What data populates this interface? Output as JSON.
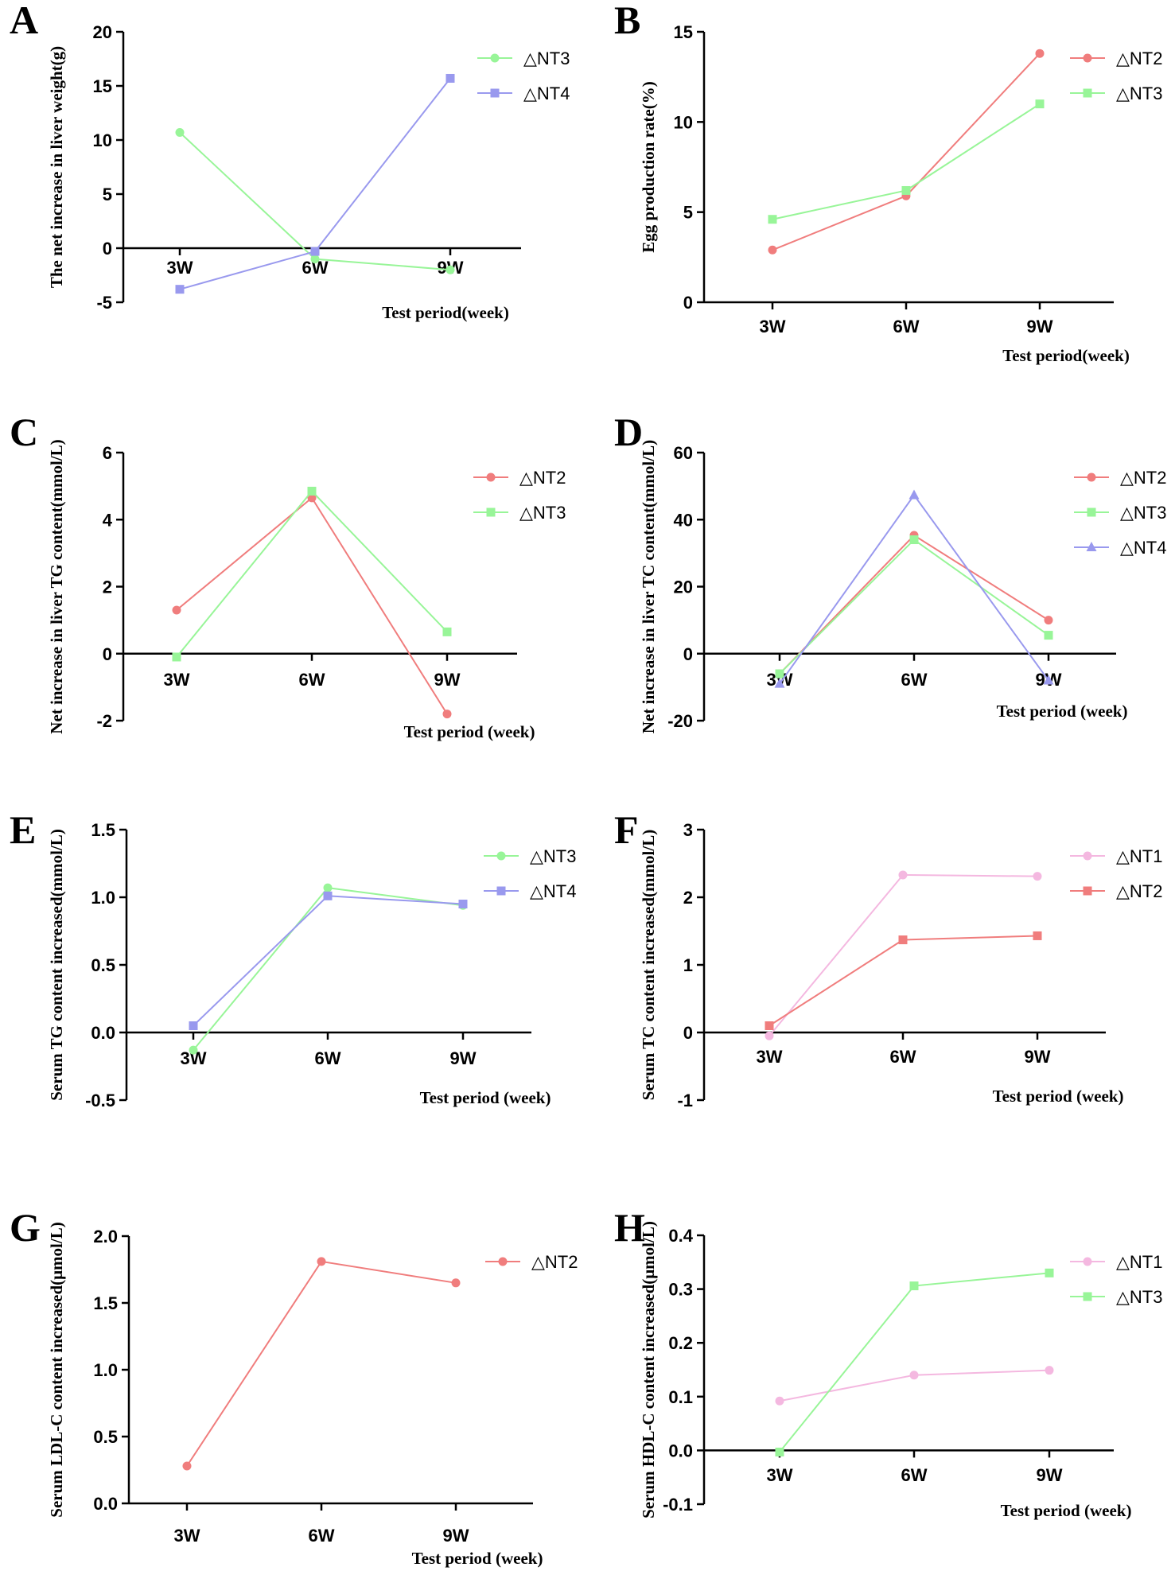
{
  "colors": {
    "NT1": "#f4b8e0",
    "NT2": "#f07d7d",
    "NT3": "#98f598",
    "NT4": "#9999ee"
  },
  "chart_data": [
    {
      "panel": "A",
      "type": "line",
      "categories": [
        "3W",
        "6W",
        "9W"
      ],
      "ylabel": "The net increase in liver weight(g)",
      "xlabel": "Test period(week)",
      "ylim": [
        -5,
        20
      ],
      "yticks": [
        "-5",
        "0",
        "5",
        "10",
        "15",
        "20"
      ],
      "series": [
        {
          "name": "△NT3",
          "key": "NT3",
          "marker": "circle",
          "values": [
            10.7,
            -1.0,
            -2.0
          ]
        },
        {
          "name": "△NT4",
          "key": "NT4",
          "marker": "square",
          "values": [
            -3.8,
            -0.3,
            15.7
          ]
        }
      ]
    },
    {
      "panel": "B",
      "type": "line",
      "categories": [
        "3W",
        "6W",
        "9W"
      ],
      "ylabel": "Egg production rate(%)",
      "xlabel": "Test period(week)",
      "ylim": [
        0,
        15
      ],
      "yticks": [
        "0",
        "5",
        "10",
        "15"
      ],
      "series": [
        {
          "name": "△NT2",
          "key": "NT2",
          "marker": "circle",
          "values": [
            2.9,
            5.9,
            13.8
          ]
        },
        {
          "name": "△NT3",
          "key": "NT3",
          "marker": "square",
          "values": [
            4.6,
            6.2,
            11.0
          ]
        }
      ]
    },
    {
      "panel": "C",
      "type": "line",
      "categories": [
        "3W",
        "6W",
        "9W"
      ],
      "ylabel": "Net increase in liver TG content(mmol/L)",
      "xlabel": "Test period (week)",
      "ylim": [
        -2,
        6
      ],
      "yticks": [
        "-2",
        "0",
        "2",
        "4",
        "6"
      ],
      "series": [
        {
          "name": "△NT2",
          "key": "NT2",
          "marker": "circle",
          "values": [
            1.3,
            4.65,
            -1.8
          ]
        },
        {
          "name": "△NT3",
          "key": "NT3",
          "marker": "square",
          "values": [
            -0.1,
            4.85,
            0.65
          ]
        }
      ]
    },
    {
      "panel": "D",
      "type": "line",
      "categories": [
        "3W",
        "6W",
        "9W"
      ],
      "ylabel": "Net increase in liver TC content(mmol/L)",
      "xlabel": "Test period (week)",
      "ylim": [
        -20,
        60
      ],
      "yticks": [
        "-20",
        "0",
        "20",
        "40",
        "60"
      ],
      "series": [
        {
          "name": "△NT2",
          "key": "NT2",
          "marker": "circle",
          "values": [
            -6.0,
            35.3,
            10.0
          ]
        },
        {
          "name": "△NT3",
          "key": "NT3",
          "marker": "square",
          "values": [
            -6.0,
            34.0,
            5.5
          ]
        },
        {
          "name": "△NT4",
          "key": "NT4",
          "marker": "triangle",
          "values": [
            -9.0,
            47.3,
            -8.0
          ]
        }
      ]
    },
    {
      "panel": "E",
      "type": "line",
      "categories": [
        "3W",
        "6W",
        "9W"
      ],
      "ylabel": "Serum TG content increased(mmol/L)",
      "xlabel": "Test period (week)",
      "ylim": [
        -0.5,
        1.5
      ],
      "yticks": [
        "-0.5",
        "0.0",
        "0.5",
        "1.0",
        "1.5"
      ],
      "series": [
        {
          "name": "△NT3",
          "key": "NT3",
          "marker": "circle",
          "values": [
            -0.13,
            1.07,
            0.94
          ]
        },
        {
          "name": "△NT4",
          "key": "NT4",
          "marker": "square",
          "values": [
            0.05,
            1.01,
            0.95
          ]
        }
      ]
    },
    {
      "panel": "F",
      "type": "line",
      "categories": [
        "3W",
        "6W",
        "9W"
      ],
      "ylabel": "Serum TC content increased(mmol/L)",
      "xlabel": "Test period (week)",
      "ylim": [
        -1,
        3
      ],
      "yticks": [
        "-1",
        "0",
        "1",
        "2",
        "3"
      ],
      "series": [
        {
          "name": "△NT1",
          "key": "NT1",
          "marker": "circle",
          "values": [
            -0.05,
            2.33,
            2.31
          ]
        },
        {
          "name": "△NT2",
          "key": "NT2",
          "marker": "square",
          "values": [
            0.1,
            1.37,
            1.43
          ]
        }
      ]
    },
    {
      "panel": "G",
      "type": "line",
      "categories": [
        "3W",
        "6W",
        "9W"
      ],
      "ylabel": "Serum LDL-C content increased(μmol/L)",
      "xlabel": "Test period (week)",
      "ylim": [
        0,
        2.0
      ],
      "yticks": [
        "0.0",
        "0.5",
        "1.0",
        "1.5",
        "2.0"
      ],
      "series": [
        {
          "name": "△NT2",
          "key": "NT2",
          "marker": "circle",
          "values": [
            0.28,
            1.81,
            1.65
          ]
        }
      ]
    },
    {
      "panel": "H",
      "type": "line",
      "categories": [
        "3W",
        "6W",
        "9W"
      ],
      "ylabel": "Serum HDL-C content increased(μmol/L)",
      "xlabel": "Test period (week)",
      "ylim": [
        -0.1,
        0.4
      ],
      "yticks": [
        "-0.1",
        "0.0",
        "0.1",
        "0.2",
        "0.3",
        "0.4"
      ],
      "series": [
        {
          "name": "△NT1",
          "key": "NT1",
          "marker": "circle",
          "values": [
            0.092,
            0.14,
            0.149
          ]
        },
        {
          "name": "△NT3",
          "key": "NT3",
          "marker": "square",
          "values": [
            -0.003,
            0.306,
            0.33
          ]
        }
      ]
    }
  ]
}
